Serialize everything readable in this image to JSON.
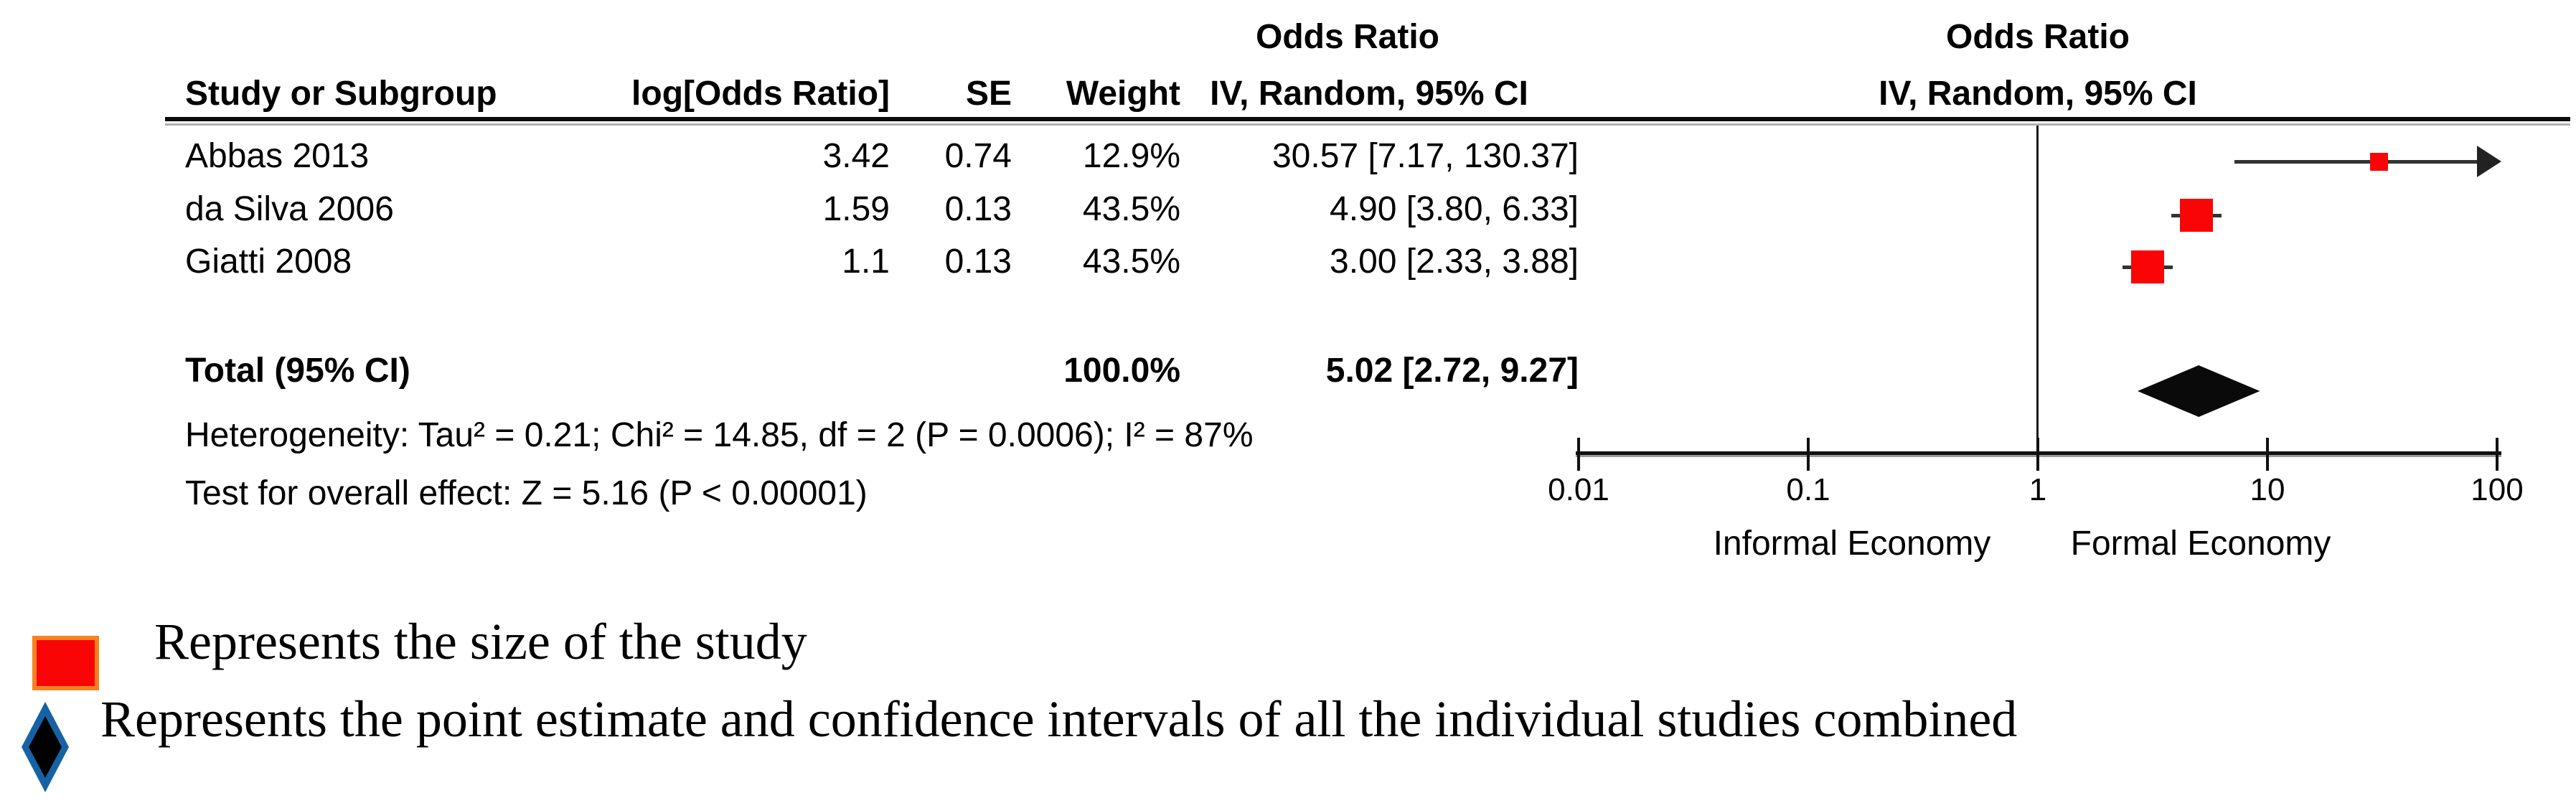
{
  "table": {
    "headers": {
      "study": "Study or Subgroup",
      "log_or": "log[Odds Ratio]",
      "se": "SE",
      "weight": "Weight",
      "or_title_left": "Odds Ratio",
      "or_subtitle_left": "IV, Random, 95% CI",
      "or_title_right": "Odds Ratio",
      "or_subtitle_right": "IV, Random, 95% CI"
    },
    "rows": [
      {
        "study": "Abbas 2013",
        "log_or": "3.42",
        "se": "0.74",
        "weight": "12.9%",
        "or_ci": "30.57 [7.17, 130.37]"
      },
      {
        "study": "da Silva 2006",
        "log_or": "1.59",
        "se": "0.13",
        "weight": "43.5%",
        "or_ci": "4.90 [3.80, 6.33]"
      },
      {
        "study": "Giatti 2008",
        "log_or": "1.1",
        "se": "0.13",
        "weight": "43.5%",
        "or_ci": "3.00 [2.33, 3.88]"
      }
    ],
    "total": {
      "label": "Total (95% CI)",
      "weight": "100.0%",
      "or_ci": "5.02 [2.72, 9.27]"
    },
    "heterogeneity": "Heterogeneity: Tau² = 0.21; Chi² = 14.85, df = 2 (P = 0.0006); I² = 87%",
    "overall_effect": "Test for overall effect: Z = 5.16 (P < 0.00001)"
  },
  "plot": {
    "informal_label": "Informal Economy",
    "formal_label": "Formal Economy"
  },
  "legend": {
    "items": [
      {
        "icon": "red-square-icon",
        "text": "Represents the size of the study"
      },
      {
        "icon": "diamond-icon",
        "text": "Represents the point estimate and confidence intervals of all the individual studies combined"
      }
    ]
  },
  "colors": {
    "study_marker_red": "#fa0505",
    "legend_square_border_orange": "#f8821f",
    "legend_diamond_blue": "#1563a5",
    "pooled_diamond_black": "#0a0a0a"
  },
  "chart_data": {
    "type": "scatter",
    "subtype": "forest-plot",
    "title": "Odds Ratio, IV, Random, 95% CI",
    "x_scale": "log10",
    "xlim": [
      0.01,
      100
    ],
    "x_ticks": [
      0.01,
      0.1,
      1,
      10,
      100
    ],
    "x_tick_labels": [
      "0.01",
      "0.1",
      "1",
      "10",
      "100"
    ],
    "x_axis_left_label": "Informal Economy",
    "x_axis_right_label": "Formal Economy",
    "studies": [
      {
        "name": "Abbas 2013",
        "log_or": 3.42,
        "se": 0.74,
        "weight_pct": 12.9,
        "or": 30.57,
        "ci_low": 7.17,
        "ci_high": 130.37
      },
      {
        "name": "da Silva 2006",
        "log_or": 1.59,
        "se": 0.13,
        "weight_pct": 43.5,
        "or": 4.9,
        "ci_low": 3.8,
        "ci_high": 6.33
      },
      {
        "name": "Giatti 2008",
        "log_or": 1.1,
        "se": 0.13,
        "weight_pct": 43.5,
        "or": 3.0,
        "ci_low": 2.33,
        "ci_high": 3.88
      }
    ],
    "total": {
      "or": 5.02,
      "ci_low": 2.72,
      "ci_high": 9.27,
      "weight_pct": 100.0
    },
    "heterogeneity": {
      "tau2": 0.21,
      "chi2": 14.85,
      "df": 2,
      "p": 0.0006,
      "i2_pct": 87
    },
    "overall_effect": {
      "z": 5.16,
      "p": "< 0.00001"
    }
  }
}
